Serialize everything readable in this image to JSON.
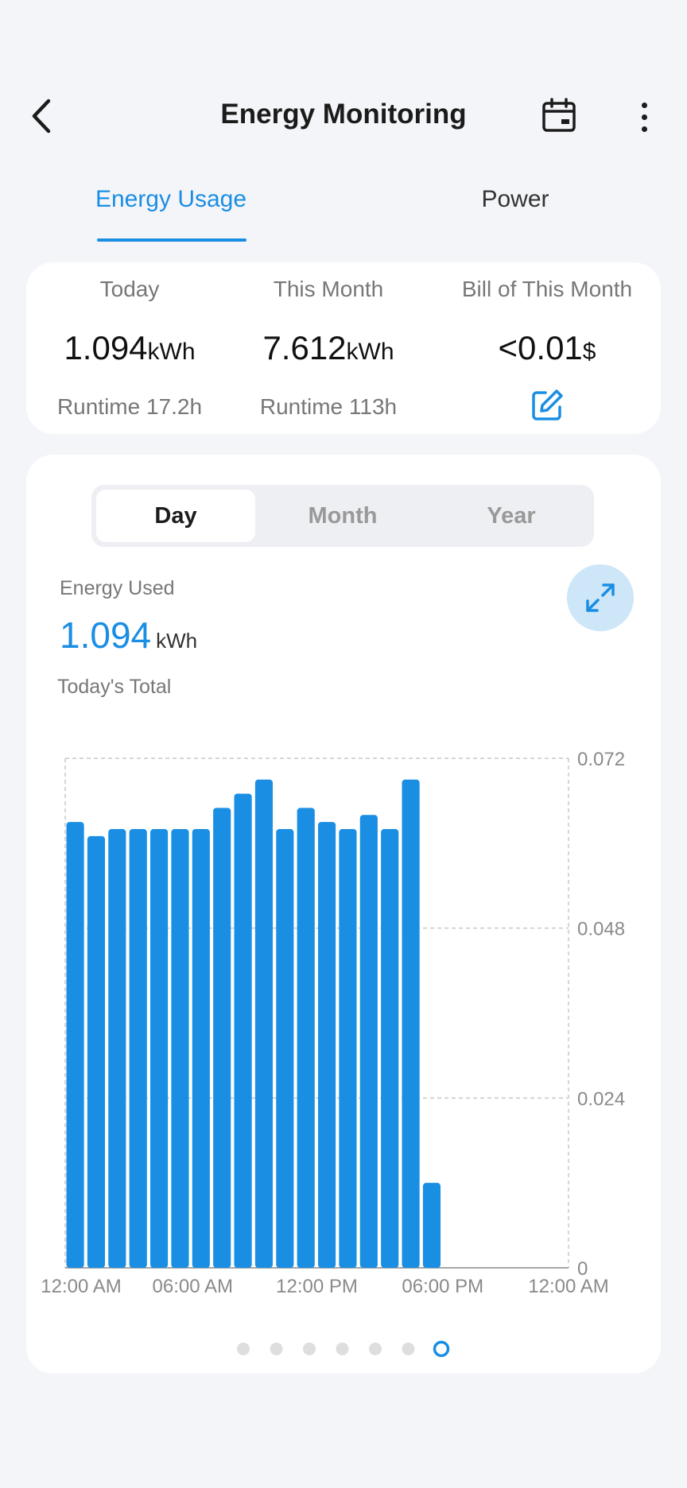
{
  "header": {
    "title": "Energy Monitoring",
    "icons": [
      "chevron-left-icon",
      "calendar-icon",
      "more-vertical-icon"
    ]
  },
  "tabs": [
    {
      "label": "Energy Usage",
      "active": true
    },
    {
      "label": "Power",
      "active": false
    }
  ],
  "summary": {
    "today": {
      "label": "Today",
      "value": "1.094",
      "unit": "kWh",
      "runtime": "Runtime 17.2h"
    },
    "month": {
      "label": "This Month",
      "value": "7.612",
      "unit": "kWh",
      "runtime": "Runtime 113h"
    },
    "bill": {
      "label": "Bill of This Month",
      "value": "<0.01",
      "unit": "$",
      "icon": "edit-icon"
    }
  },
  "period_selector": {
    "options": [
      "Day",
      "Month",
      "Year"
    ],
    "selected": "Day"
  },
  "energy_used": {
    "label": "Energy Used",
    "value": "1.094",
    "unit": "kWh",
    "caption": "Today's Total",
    "expand_icon": "expand-icon"
  },
  "chart_data": {
    "type": "bar",
    "x_tick_labels": [
      "12:00 AM",
      "06:00 AM",
      "12:00 PM",
      "06:00 PM",
      "12:00 AM"
    ],
    "y_tick_labels": [
      "0.072",
      "0.048",
      "0.024",
      "0"
    ],
    "ylim": [
      0,
      0.072
    ],
    "x_slots": 24,
    "values": [
      0.063,
      0.061,
      0.062,
      0.062,
      0.062,
      0.062,
      0.062,
      0.065,
      0.067,
      0.069,
      0.062,
      0.065,
      0.063,
      0.062,
      0.064,
      0.062,
      0.069,
      0.012
    ],
    "bar_color": "#1a8ee3",
    "grid": true
  },
  "pager": {
    "count": 7,
    "active_index": 6
  },
  "colors": {
    "accent": "#1a8ee3",
    "background": "#f4f5f9",
    "card": "#ffffff"
  }
}
